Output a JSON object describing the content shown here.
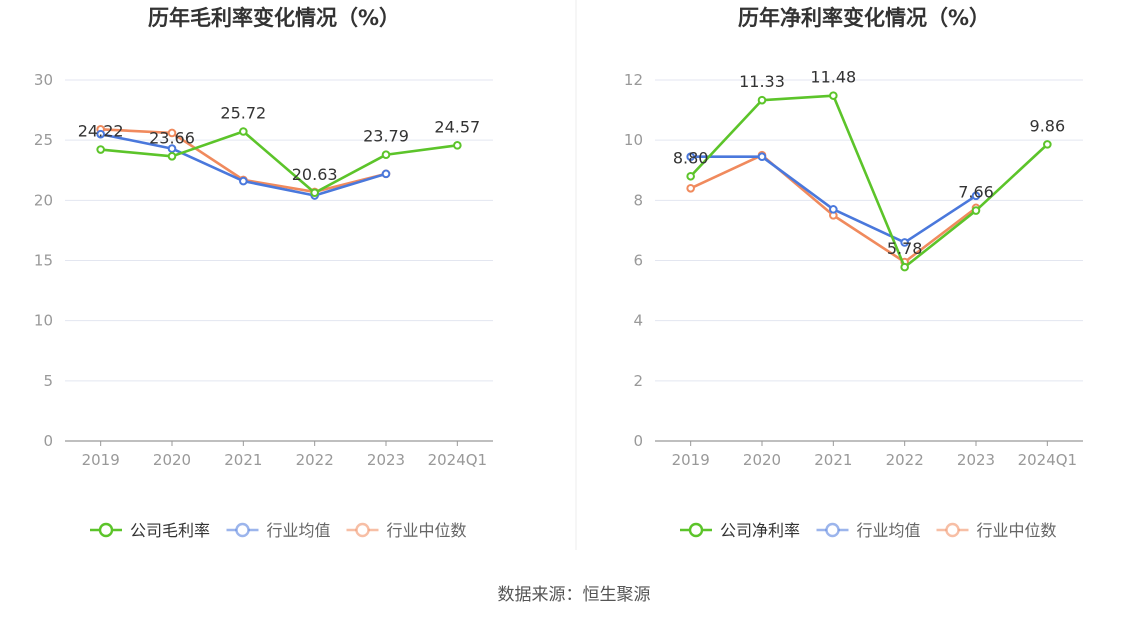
{
  "source": "数据来源：恒生聚源",
  "chart_data": [
    {
      "type": "line",
      "title": "历年毛利率变化情况（%）",
      "categories": [
        "2019",
        "2020",
        "2021",
        "2022",
        "2023",
        "2024Q1"
      ],
      "ylim": [
        0,
        30
      ],
      "yticks": [
        0,
        5,
        10,
        15,
        20,
        25,
        30
      ],
      "grid": true,
      "legend_position": "bottom",
      "series": [
        {
          "name": "公司毛利率",
          "color": "#5cc42a",
          "values": [
            24.22,
            23.66,
            25.72,
            20.63,
            23.79,
            24.57
          ],
          "labels": [
            "24.22",
            "23.66",
            "25.72",
            "20.63",
            "23.79",
            "24.57"
          ]
        },
        {
          "name": "行业均值",
          "color": "#4a78dc",
          "values": [
            25.5,
            24.3,
            21.6,
            20.4,
            22.2,
            null
          ]
        },
        {
          "name": "行业中位数",
          "color": "#f08a5d",
          "values": [
            25.9,
            25.6,
            21.7,
            20.7,
            22.2,
            null
          ]
        }
      ]
    },
    {
      "type": "line",
      "title": "历年净利率变化情况（%）",
      "categories": [
        "2019",
        "2020",
        "2021",
        "2022",
        "2023",
        "2024Q1"
      ],
      "ylim": [
        0,
        12
      ],
      "yticks": [
        0,
        2,
        4,
        6,
        8,
        10,
        12
      ],
      "grid": true,
      "legend_position": "bottom",
      "series": [
        {
          "name": "公司净利率",
          "color": "#5cc42a",
          "values": [
            8.8,
            11.33,
            11.48,
            5.78,
            7.66,
            9.86
          ],
          "labels": [
            "8.80",
            "11.33",
            "11.48",
            "5.78",
            "7.66",
            "9.86"
          ]
        },
        {
          "name": "行业均值",
          "color": "#4a78dc",
          "values": [
            9.45,
            9.45,
            7.7,
            6.6,
            8.15,
            null
          ]
        },
        {
          "name": "行业中位数",
          "color": "#f08a5d",
          "values": [
            8.4,
            9.5,
            7.5,
            5.95,
            7.75,
            null
          ]
        }
      ]
    }
  ]
}
